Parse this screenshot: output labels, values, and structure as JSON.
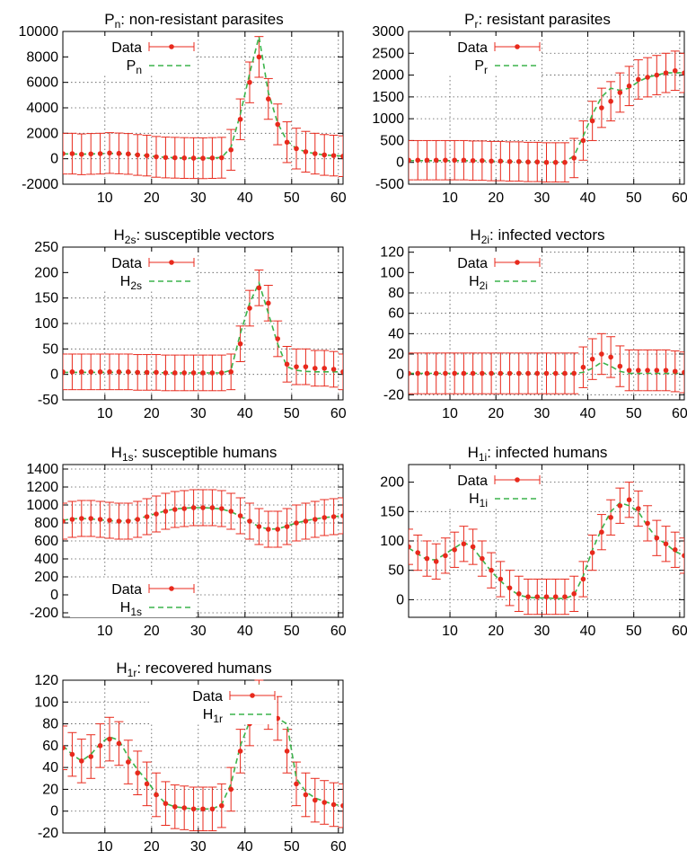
{
  "figure": {
    "legend_data_label": "Data",
    "colors": {
      "data": "#e8291c",
      "model": "#3cb44b",
      "grid": "#555555",
      "axis": "#000000"
    }
  },
  "chart_data": [
    {
      "id": "pn",
      "type": "line",
      "title": {
        "main": "P",
        "sub": "n",
        "rest": ": non-resistant parasites"
      },
      "model_label": {
        "main": "P",
        "sub": "n"
      },
      "legend_position": "top-left",
      "xlim": [
        1,
        61
      ],
      "ylim": [
        -2000,
        10000
      ],
      "xticks": [
        10,
        20,
        30,
        40,
        50,
        60
      ],
      "yticks": [
        -2000,
        0,
        2000,
        4000,
        6000,
        8000,
        10000
      ],
      "x": [
        1,
        3,
        5,
        7,
        9,
        11,
        13,
        15,
        17,
        19,
        21,
        23,
        25,
        27,
        29,
        31,
        33,
        35,
        37,
        39,
        41,
        43,
        45,
        47,
        49,
        51,
        53,
        55,
        57,
        59,
        61
      ],
      "data": [
        400,
        400,
        350,
        380,
        400,
        450,
        420,
        380,
        300,
        250,
        150,
        100,
        80,
        60,
        50,
        40,
        60,
        80,
        700,
        3100,
        6000,
        8000,
        4700,
        2700,
        1300,
        800,
        550,
        400,
        300,
        250,
        200
      ],
      "error": [
        1600,
        1600,
        1600,
        1600,
        1600,
        1600,
        1600,
        1600,
        1600,
        1600,
        1600,
        1600,
        1600,
        1600,
        1600,
        1600,
        1600,
        1600,
        1600,
        1600,
        1600,
        1600,
        1600,
        1600,
        1600,
        1600,
        1600,
        1600,
        1600,
        1600,
        1600
      ],
      "model": [
        380,
        370,
        360,
        380,
        400,
        420,
        400,
        360,
        300,
        240,
        160,
        110,
        80,
        60,
        50,
        40,
        60,
        100,
        900,
        3500,
        6700,
        9600,
        5200,
        2800,
        1400,
        800,
        550,
        400,
        300,
        250,
        200
      ]
    },
    {
      "id": "pr",
      "type": "line",
      "title": {
        "main": "P",
        "sub": "r",
        "rest": ": resistant parasites"
      },
      "model_label": {
        "main": "P",
        "sub": "r"
      },
      "legend_position": "top-left",
      "xlim": [
        1,
        61
      ],
      "ylim": [
        -500,
        3000
      ],
      "xticks": [
        10,
        20,
        30,
        40,
        50,
        60
      ],
      "yticks": [
        -500,
        0,
        500,
        1000,
        1500,
        2000,
        2500,
        3000
      ],
      "x": [
        1,
        3,
        5,
        7,
        9,
        11,
        13,
        15,
        17,
        19,
        21,
        23,
        25,
        27,
        29,
        31,
        33,
        35,
        37,
        39,
        41,
        43,
        45,
        47,
        49,
        51,
        53,
        55,
        57,
        59,
        61
      ],
      "data": [
        50,
        50,
        50,
        50,
        50,
        50,
        50,
        40,
        40,
        30,
        30,
        20,
        20,
        10,
        10,
        0,
        0,
        0,
        100,
        500,
        950,
        1250,
        1400,
        1600,
        1750,
        1900,
        1950,
        2000,
        2050,
        2100,
        2050
      ],
      "error": [
        450,
        450,
        450,
        450,
        450,
        450,
        450,
        450,
        450,
        450,
        450,
        450,
        450,
        450,
        450,
        450,
        450,
        450,
        450,
        450,
        450,
        450,
        450,
        450,
        450,
        450,
        450,
        450,
        450,
        450,
        450
      ],
      "model": [
        40,
        40,
        40,
        40,
        40,
        40,
        40,
        35,
        35,
        30,
        25,
        20,
        15,
        10,
        10,
        5,
        5,
        10,
        150,
        600,
        1100,
        1500,
        1700,
        1650,
        1700,
        1850,
        1950,
        2000,
        2050,
        2050,
        2050
      ]
    },
    {
      "id": "h2s",
      "type": "line",
      "title": {
        "main": "H",
        "sub": "2s",
        "rest": ": susceptible vectors"
      },
      "model_label": {
        "main": "H",
        "sub": "2s"
      },
      "legend_position": "top-left",
      "xlim": [
        1,
        61
      ],
      "ylim": [
        -50,
        250
      ],
      "xticks": [
        10,
        20,
        30,
        40,
        50,
        60
      ],
      "yticks": [
        -50,
        0,
        50,
        100,
        150,
        200,
        250
      ],
      "x": [
        1,
        3,
        5,
        7,
        9,
        11,
        13,
        15,
        17,
        19,
        21,
        23,
        25,
        27,
        29,
        31,
        33,
        35,
        37,
        39,
        41,
        43,
        45,
        47,
        49,
        51,
        53,
        55,
        57,
        59,
        61
      ],
      "data": [
        5,
        5,
        5,
        5,
        5,
        5,
        5,
        5,
        4,
        4,
        4,
        3,
        3,
        3,
        3,
        3,
        3,
        3,
        5,
        60,
        130,
        170,
        140,
        70,
        20,
        15,
        15,
        12,
        12,
        10,
        5
      ],
      "error": [
        35,
        35,
        35,
        35,
        35,
        35,
        35,
        35,
        35,
        35,
        35,
        35,
        35,
        35,
        35,
        35,
        35,
        35,
        35,
        35,
        35,
        35,
        35,
        35,
        35,
        35,
        35,
        35,
        35,
        35,
        35
      ],
      "model": [
        4,
        4,
        4,
        4,
        4,
        4,
        4,
        4,
        4,
        4,
        4,
        3,
        3,
        3,
        3,
        3,
        3,
        3,
        8,
        80,
        140,
        180,
        120,
        60,
        15,
        8,
        6,
        5,
        5,
        5,
        5
      ]
    },
    {
      "id": "h2i",
      "type": "line",
      "title": {
        "main": "H",
        "sub": "2i",
        "rest": ": infected vectors"
      },
      "model_label": {
        "main": "H",
        "sub": "2i"
      },
      "legend_position": "top-left",
      "xlim": [
        1,
        61
      ],
      "ylim": [
        -25,
        125
      ],
      "xticks": [
        10,
        20,
        30,
        40,
        50,
        60
      ],
      "yticks": [
        -20,
        0,
        20,
        40,
        60,
        80,
        100,
        120
      ],
      "x": [
        1,
        3,
        5,
        7,
        9,
        11,
        13,
        15,
        17,
        19,
        21,
        23,
        25,
        27,
        29,
        31,
        33,
        35,
        37,
        39,
        41,
        43,
        45,
        47,
        49,
        51,
        53,
        55,
        57,
        59,
        61
      ],
      "data": [
        1,
        1,
        1,
        1,
        1,
        1,
        1,
        1,
        1,
        1,
        1,
        1,
        1,
        1,
        1,
        1,
        1,
        1,
        1,
        7,
        15,
        20,
        17,
        8,
        4,
        4,
        4,
        4,
        4,
        3,
        2
      ],
      "error": [
        20,
        20,
        20,
        20,
        20,
        20,
        20,
        20,
        20,
        20,
        20,
        20,
        20,
        20,
        20,
        20,
        20,
        20,
        20,
        20,
        20,
        20,
        20,
        20,
        20,
        20,
        20,
        20,
        20,
        20,
        20
      ],
      "model": [
        1,
        1,
        1,
        1,
        1,
        1,
        1,
        1,
        1,
        1,
        1,
        1,
        1,
        1,
        1,
        1,
        1,
        1,
        1,
        2,
        6,
        12,
        8,
        3,
        1,
        1,
        1,
        1,
        1,
        1,
        1
      ]
    },
    {
      "id": "h1s",
      "type": "line",
      "title": {
        "main": "H",
        "sub": "1s",
        "rest": ": susceptible humans"
      },
      "model_label": {
        "main": "H",
        "sub": "1s"
      },
      "legend_position": "bottom-left",
      "xlim": [
        1,
        61
      ],
      "ylim": [
        -250,
        1450
      ],
      "xticks": [
        10,
        20,
        30,
        40,
        50,
        60
      ],
      "yticks": [
        -200,
        0,
        200,
        400,
        600,
        800,
        1000,
        1200,
        1400
      ],
      "x": [
        1,
        3,
        5,
        7,
        9,
        11,
        13,
        15,
        17,
        19,
        21,
        23,
        25,
        27,
        29,
        31,
        33,
        35,
        37,
        39,
        41,
        43,
        45,
        47,
        49,
        51,
        53,
        55,
        57,
        59,
        61
      ],
      "data": [
        820,
        840,
        850,
        850,
        840,
        830,
        820,
        820,
        840,
        870,
        900,
        930,
        950,
        960,
        970,
        970,
        970,
        960,
        930,
        880,
        820,
        760,
        730,
        730,
        760,
        800,
        820,
        840,
        860,
        870,
        880
      ],
      "error": [
        200,
        200,
        200,
        200,
        200,
        200,
        200,
        200,
        200,
        200,
        200,
        200,
        200,
        200,
        200,
        200,
        200,
        200,
        200,
        200,
        200,
        200,
        200,
        200,
        200,
        200,
        200,
        200,
        200,
        200,
        200
      ],
      "model": [
        830,
        845,
        850,
        845,
        835,
        825,
        820,
        825,
        845,
        875,
        905,
        935,
        955,
        965,
        970,
        970,
        965,
        955,
        925,
        875,
        815,
        760,
        730,
        735,
        765,
        800,
        825,
        845,
        860,
        870,
        880
      ]
    },
    {
      "id": "h1i",
      "type": "line",
      "title": {
        "main": "H",
        "sub": "1i",
        "rest": ": infected humans"
      },
      "model_label": {
        "main": "H",
        "sub": "1i"
      },
      "legend_position": "top-left",
      "xlim": [
        1,
        61
      ],
      "ylim": [
        -30,
        230
      ],
      "xticks": [
        10,
        20,
        30,
        40,
        50,
        60
      ],
      "yticks": [
        0,
        50,
        100,
        150,
        200
      ],
      "x": [
        1,
        3,
        5,
        7,
        9,
        11,
        13,
        15,
        17,
        19,
        21,
        23,
        25,
        27,
        29,
        31,
        33,
        35,
        37,
        39,
        41,
        43,
        45,
        47,
        49,
        51,
        53,
        55,
        57,
        59,
        61
      ],
      "data": [
        90,
        80,
        70,
        65,
        75,
        85,
        95,
        90,
        70,
        50,
        35,
        20,
        10,
        5,
        5,
        5,
        5,
        5,
        10,
        35,
        80,
        115,
        140,
        160,
        170,
        155,
        130,
        105,
        95,
        85,
        75
      ],
      "error": [
        30,
        30,
        30,
        30,
        30,
        30,
        30,
        30,
        30,
        30,
        30,
        30,
        30,
        30,
        30,
        30,
        30,
        30,
        30,
        30,
        30,
        30,
        30,
        30,
        30,
        30,
        30,
        30,
        30,
        30,
        30
      ],
      "model": [
        88,
        78,
        68,
        68,
        78,
        88,
        98,
        88,
        68,
        48,
        32,
        18,
        8,
        4,
        3,
        3,
        2,
        2,
        8,
        40,
        85,
        120,
        150,
        165,
        160,
        150,
        125,
        105,
        95,
        82,
        75
      ]
    },
    {
      "id": "h1r",
      "type": "line",
      "title": {
        "main": "H",
        "sub": "1r",
        "rest": ": recovered humans"
      },
      "model_label": {
        "main": "H",
        "sub": "1r"
      },
      "legend_position": "top-right",
      "xlim": [
        1,
        61
      ],
      "ylim": [
        -20,
        120
      ],
      "xticks": [
        10,
        20,
        30,
        40,
        50,
        60
      ],
      "yticks": [
        -20,
        0,
        20,
        40,
        60,
        80,
        100,
        120
      ],
      "x": [
        1,
        3,
        5,
        7,
        9,
        11,
        13,
        15,
        17,
        19,
        21,
        23,
        25,
        27,
        29,
        31,
        33,
        35,
        37,
        39,
        41,
        43,
        45,
        47,
        49,
        51,
        53,
        55,
        57,
        59,
        61
      ],
      "data": [
        58,
        52,
        46,
        50,
        60,
        66,
        62,
        45,
        35,
        25,
        15,
        7,
        4,
        3,
        2,
        2,
        2,
        5,
        20,
        55,
        80,
        100,
        95,
        85,
        55,
        25,
        15,
        10,
        8,
        6,
        5
      ],
      "error": [
        20,
        20,
        20,
        20,
        20,
        20,
        20,
        20,
        20,
        20,
        20,
        20,
        20,
        20,
        20,
        20,
        20,
        20,
        20,
        20,
        20,
        20,
        20,
        20,
        20,
        20,
        20,
        20,
        20,
        20,
        20
      ],
      "model": [
        60,
        52,
        46,
        52,
        62,
        68,
        65,
        50,
        38,
        28,
        16,
        7,
        4,
        3,
        2,
        2,
        2,
        6,
        25,
        60,
        82,
        115,
        90,
        85,
        80,
        30,
        18,
        12,
        9,
        6,
        5
      ]
    }
  ]
}
